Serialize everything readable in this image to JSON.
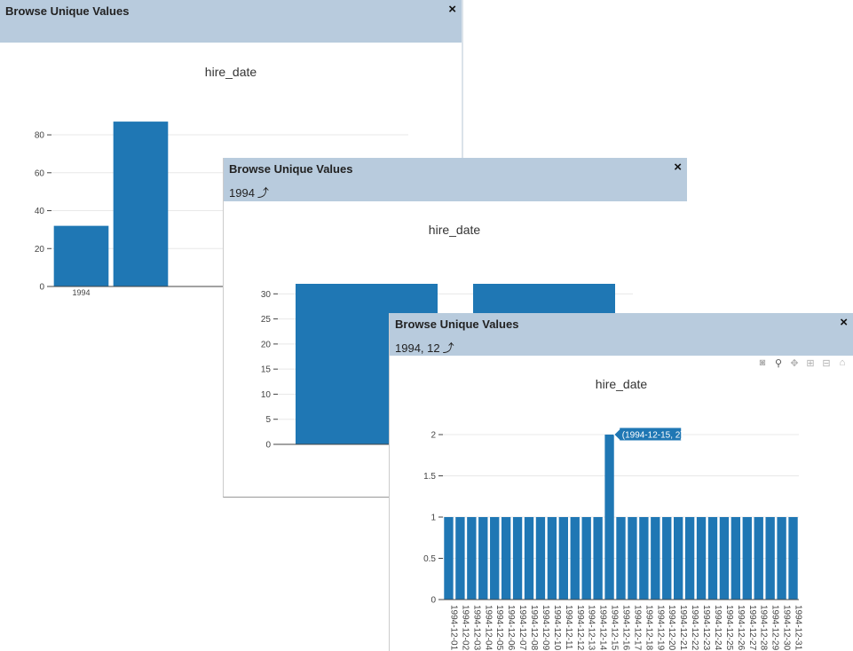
{
  "windows": [
    {
      "title": "Browse Unique Values",
      "close_label": "×",
      "breadcrumb": "",
      "chart_title": "hire_date",
      "chart_data": {
        "type": "bar",
        "title": "hire_date",
        "categories": [
          "1994",
          "",
          "",
          "",
          "",
          ""
        ],
        "values": [
          32,
          87,
          0,
          0,
          0,
          0
        ],
        "ylim": [
          0,
          95
        ],
        "yticks": [
          0,
          20,
          40,
          60,
          80
        ],
        "grid": true
      }
    },
    {
      "title": "Browse Unique Values",
      "close_label": "×",
      "breadcrumb": "1994",
      "chart_title": "hire_date",
      "chart_data": {
        "type": "bar",
        "title": "hire_date",
        "categories": [
          "",
          ""
        ],
        "values": [
          32,
          32
        ],
        "ylim": [
          0,
          32
        ],
        "yticks": [
          0,
          5,
          10,
          15,
          20,
          25,
          30
        ],
        "grid": true
      }
    },
    {
      "title": "Browse Unique Values",
      "close_label": "×",
      "breadcrumb": "1994, 12",
      "chart_title": "hire_date",
      "modebar": [
        "camera-icon",
        "zoom-icon",
        "pan-icon",
        "zoom-in-icon",
        "zoom-out-icon",
        "home-icon"
      ],
      "tooltip": "(1994-12-15, 2)",
      "chart_data": {
        "type": "bar",
        "title": "hire_date",
        "categories": [
          "1994-12-01",
          "1994-12-02",
          "1994-12-03",
          "1994-12-04",
          "1994-12-05",
          "1994-12-06",
          "1994-12-07",
          "1994-12-08",
          "1994-12-09",
          "1994-12-10",
          "1994-12-11",
          "1994-12-12",
          "1994-12-13",
          "1994-12-14",
          "1994-12-15",
          "1994-12-16",
          "1994-12-17",
          "1994-12-18",
          "1994-12-19",
          "1994-12-20",
          "1994-12-21",
          "1994-12-22",
          "1994-12-23",
          "1994-12-24",
          "1994-12-25",
          "1994-12-26",
          "1994-12-27",
          "1994-12-28",
          "1994-12-29",
          "1994-12-30",
          "1994-12-31"
        ],
        "values": [
          1,
          1,
          1,
          1,
          1,
          1,
          1,
          1,
          1,
          1,
          1,
          1,
          1,
          1,
          2,
          1,
          1,
          1,
          1,
          1,
          1,
          1,
          1,
          1,
          1,
          1,
          1,
          1,
          1,
          1,
          1
        ],
        "ylim": [
          0,
          2
        ],
        "yticks": [
          0,
          0.5,
          1,
          1.5,
          2
        ],
        "grid": true
      }
    }
  ],
  "colors": {
    "bar": "#1f77b4",
    "header": "#b8cbdd",
    "grid": "#e8e8e8"
  }
}
